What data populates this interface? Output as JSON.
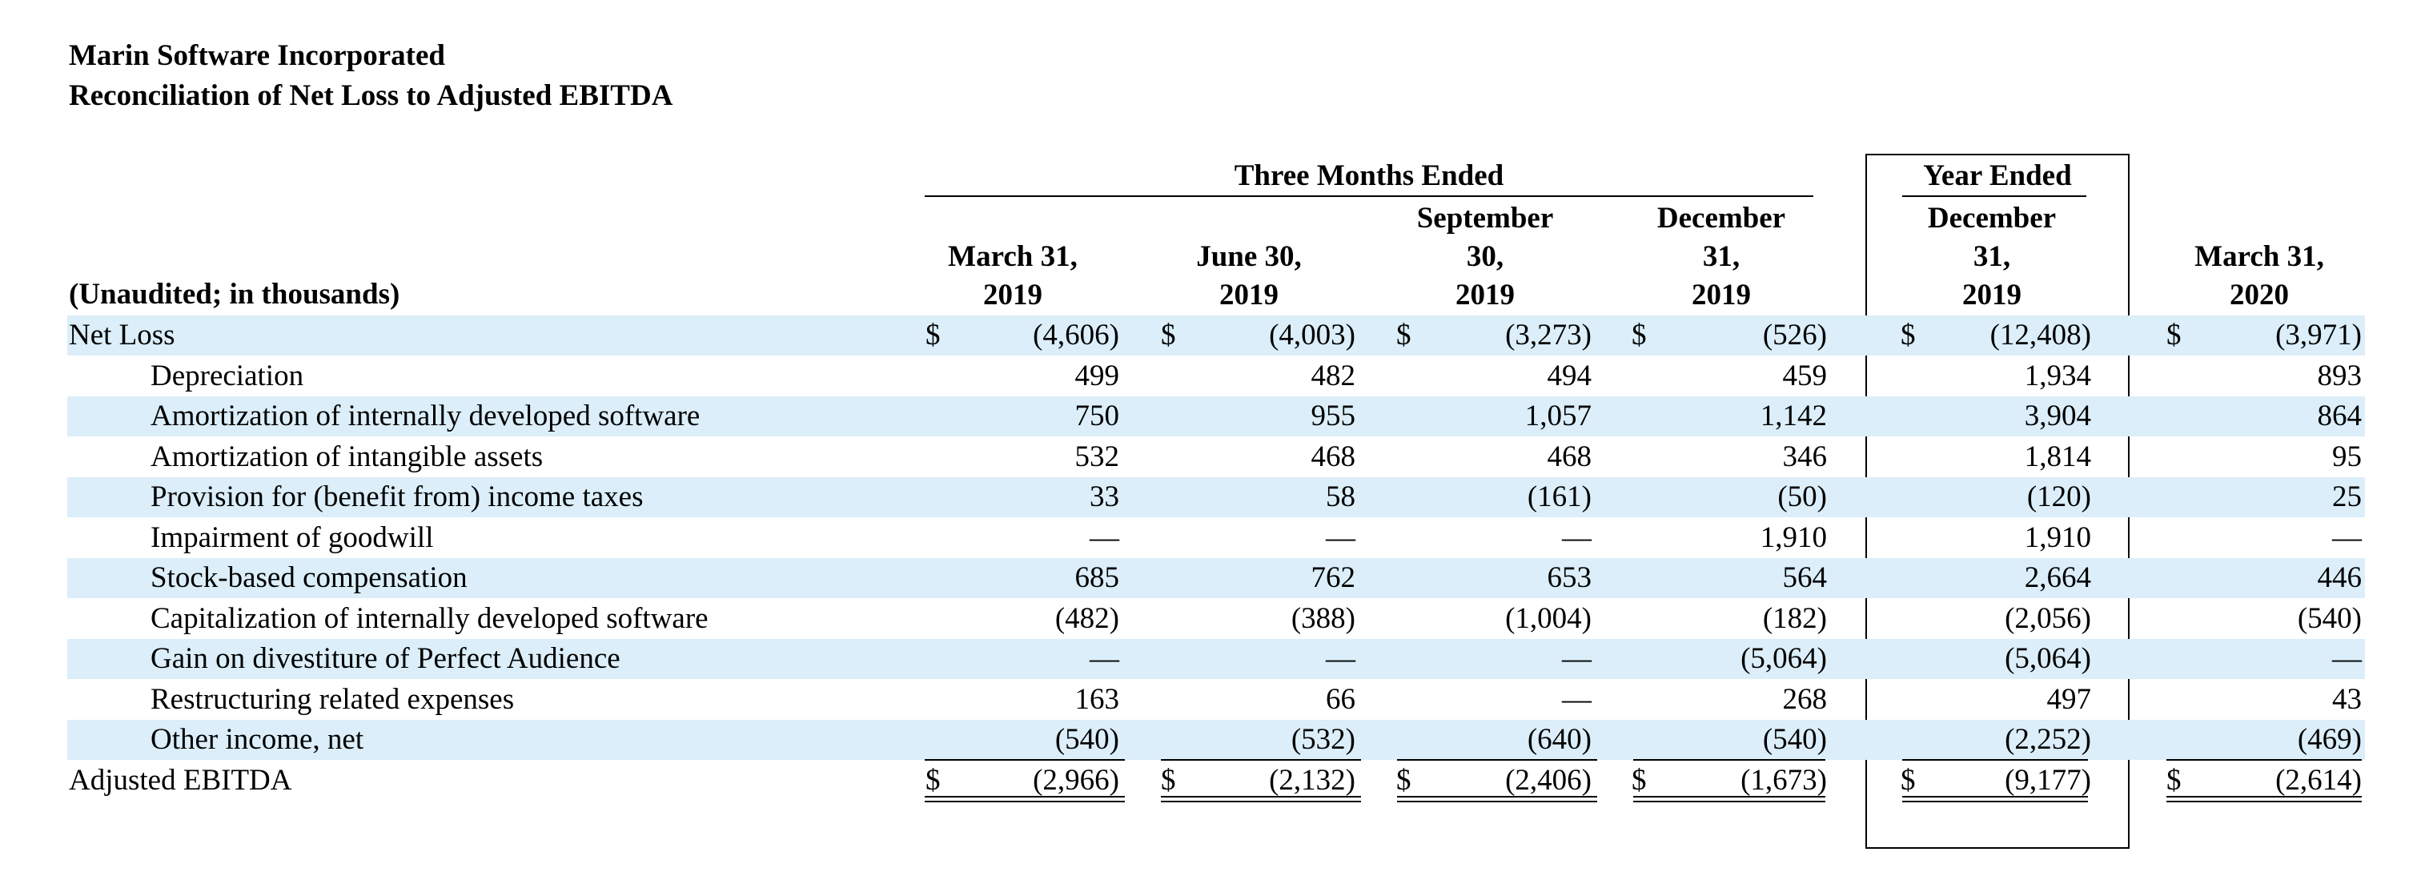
{
  "company": "Marin Software Incorporated",
  "subtitle": "Reconciliation of Net Loss to Adjusted EBITDA",
  "header": {
    "group_three_months": "Three Months Ended",
    "group_year": "Year Ended",
    "unit_label": "(Unaudited; in thousands)",
    "columns": [
      [
        "March 31,",
        "2019"
      ],
      [
        "June 30,",
        "2019"
      ],
      [
        "September",
        "30,",
        "2019"
      ],
      [
        "December",
        "31,",
        "2019"
      ],
      [
        "December",
        "31,",
        "2019"
      ],
      [
        "March 31,",
        "2020"
      ]
    ]
  },
  "currency_symbol": "$",
  "rows": [
    {
      "label": "Net Loss",
      "indent": false,
      "dollar": true,
      "values": [
        "(4,606)",
        "(4,003)",
        "(3,273)",
        "(526)",
        "(12,408)",
        "(3,971)"
      ]
    },
    {
      "label": "Depreciation",
      "indent": true,
      "dollar": false,
      "values": [
        "499",
        "482",
        "494",
        "459",
        "1,934",
        "893"
      ]
    },
    {
      "label": "Amortization of internally developed software",
      "indent": true,
      "dollar": false,
      "values": [
        "750",
        "955",
        "1,057",
        "1,142",
        "3,904",
        "864"
      ]
    },
    {
      "label": "Amortization of intangible assets",
      "indent": true,
      "dollar": false,
      "values": [
        "532",
        "468",
        "468",
        "346",
        "1,814",
        "95"
      ]
    },
    {
      "label": "Provision for (benefit from) income taxes",
      "indent": true,
      "dollar": false,
      "values": [
        "33",
        "58",
        "(161)",
        "(50)",
        "(120)",
        "25"
      ]
    },
    {
      "label": "Impairment of goodwill",
      "indent": true,
      "dollar": false,
      "values": [
        "—",
        "—",
        "—",
        "1,910",
        "1,910",
        "—"
      ]
    },
    {
      "label": "Stock-based compensation",
      "indent": true,
      "dollar": false,
      "values": [
        "685",
        "762",
        "653",
        "564",
        "2,664",
        "446"
      ]
    },
    {
      "label": "Capitalization of internally developed software",
      "indent": true,
      "dollar": false,
      "values": [
        "(482)",
        "(388)",
        "(1,004)",
        "(182)",
        "(2,056)",
        "(540)"
      ]
    },
    {
      "label": "Gain on divestiture of Perfect Audience",
      "indent": true,
      "dollar": false,
      "values": [
        "—",
        "—",
        "—",
        "(5,064)",
        "(5,064)",
        "—"
      ]
    },
    {
      "label": "Restructuring related expenses",
      "indent": true,
      "dollar": false,
      "values": [
        "163",
        "66",
        "—",
        "268",
        "497",
        "43"
      ]
    },
    {
      "label": "Other income, net",
      "indent": true,
      "dollar": false,
      "values": [
        "(540)",
        "(532)",
        "(640)",
        "(540)",
        "(2,252)",
        "(469)"
      ]
    },
    {
      "label": "Adjusted EBITDA",
      "indent": false,
      "dollar": true,
      "values": [
        "(2,966)",
        "(2,132)",
        "(2,406)",
        "(1,673)",
        "(9,177)",
        "(2,614)"
      ]
    }
  ]
}
